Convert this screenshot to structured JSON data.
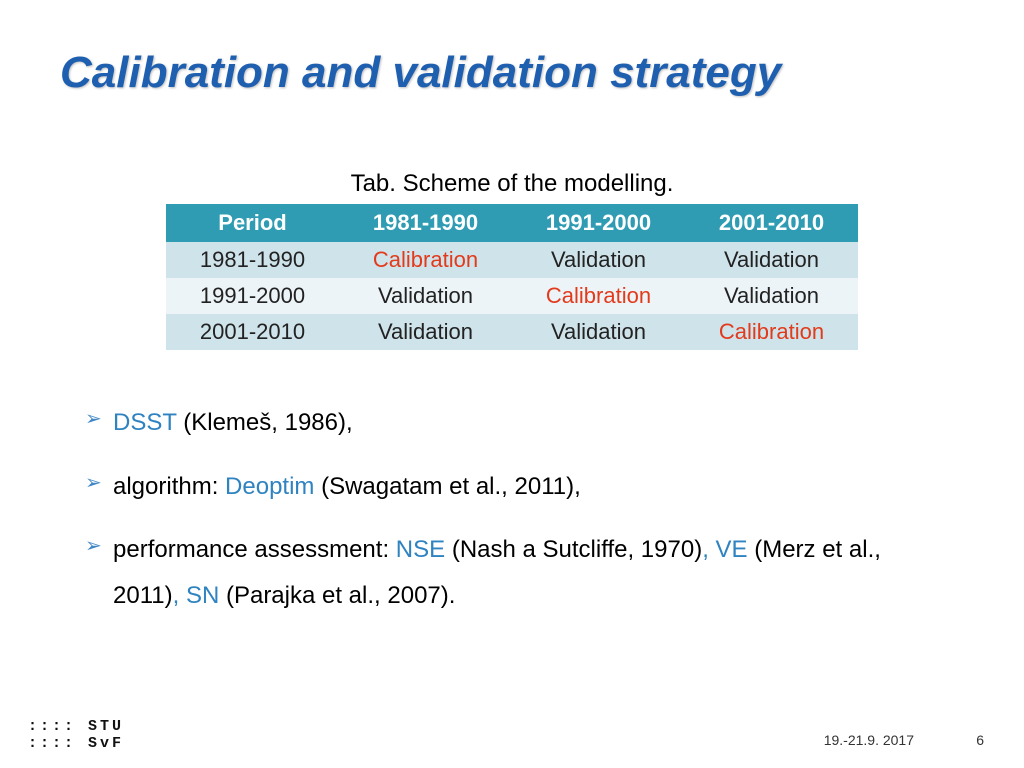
{
  "title": "Calibration and validation strategy",
  "caption": "Tab. Scheme of the modelling.",
  "table": {
    "headers": [
      "Period",
      "1981-1990",
      "1991-2000",
      "2001-2010"
    ],
    "rows": [
      {
        "label": "1981-1990",
        "cells": [
          {
            "text": "Calibration",
            "calib": true
          },
          {
            "text": "Validation",
            "calib": false
          },
          {
            "text": "Validation",
            "calib": false
          }
        ]
      },
      {
        "label": "1991-2000",
        "cells": [
          {
            "text": "Validation",
            "calib": false
          },
          {
            "text": "Calibration",
            "calib": true
          },
          {
            "text": "Validation",
            "calib": false
          }
        ]
      },
      {
        "label": "2001-2010",
        "cells": [
          {
            "text": "Validation",
            "calib": false
          },
          {
            "text": "Validation",
            "calib": false
          },
          {
            "text": "Calibration",
            "calib": true
          }
        ]
      }
    ],
    "header_bg": "#2f9cb4",
    "header_fg": "#ffffff",
    "row_odd_bg": "#cfe3ea",
    "row_even_bg": "#edf4f7",
    "calib_color": "#e23a1b",
    "fontsize": 22
  },
  "bullets": [
    {
      "segments": [
        {
          "text": "DSST",
          "hl": true
        },
        {
          "text": " (Klemeš, 1986),",
          "hl": false
        }
      ]
    },
    {
      "segments": [
        {
          "text": "algorithm: ",
          "hl": false
        },
        {
          "text": "Deoptim",
          "hl": true
        },
        {
          "text": " (Swagatam et al., 2011),",
          "hl": false
        }
      ]
    },
    {
      "segments": [
        {
          "text": "performance assessment: ",
          "hl": false
        },
        {
          "text": "NSE",
          "hl": true
        },
        {
          "text": " (Nash a Sutcliffe, 1970)",
          "hl": false
        },
        {
          "text": ", ",
          "hl": true
        },
        {
          "text": "VE",
          "hl": true
        },
        {
          "text": " (Merz et al., 2011)",
          "hl": false
        },
        {
          "text": ", ",
          "hl": true
        },
        {
          "text": "SN",
          "hl": true
        },
        {
          "text": " (Parajka et al., 2007).",
          "hl": false
        }
      ]
    }
  ],
  "logo": {
    "line1": ":::: STU",
    "line2": ":::: SvF"
  },
  "footer": {
    "date": "19.-21.9. 2017",
    "page": "6"
  },
  "colors": {
    "title": "#1f5fb0",
    "highlight": "#2f83c0",
    "triangle_teal": "#2aa0b8",
    "triangle_black": "#0a0a0a",
    "background": "#ffffff"
  }
}
